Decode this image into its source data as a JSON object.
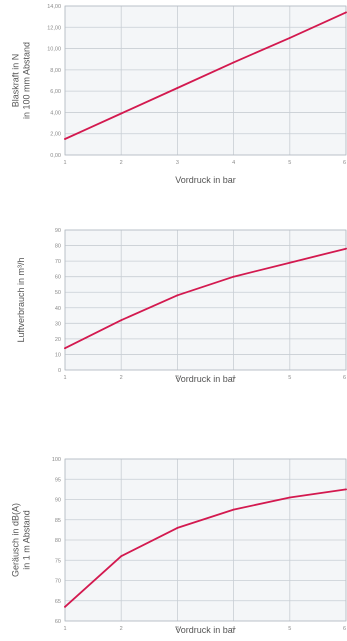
{
  "chart_data": [
    {
      "type": "line",
      "xlabel": "Vordruck in bar",
      "ylabel": [
        "Blaskraft in N",
        "in 100 mm Abstand"
      ],
      "xlim": [
        1,
        6
      ],
      "ylim": [
        0,
        14
      ],
      "x_ticks": [
        "1",
        "2",
        "3",
        "4",
        "5",
        "6"
      ],
      "y_ticks": [
        "0,00",
        "2,00",
        "4,00",
        "6,00",
        "8,00",
        "10,00",
        "12,00",
        "14,00"
      ],
      "grid": true,
      "series": [
        {
          "x": [
            1,
            2,
            3,
            4,
            5,
            6
          ],
          "y": [
            1.5,
            3.9,
            6.3,
            8.7,
            11.0,
            13.4
          ]
        }
      ],
      "line_color": "#d3194f"
    },
    {
      "type": "line",
      "xlabel": "Vordruck in bar",
      "ylabel": [
        "Luftverbrauch in m³/h"
      ],
      "xlim": [
        1,
        6
      ],
      "ylim": [
        0,
        90
      ],
      "x_ticks": [
        "1",
        "2",
        "3",
        "4",
        "5",
        "6"
      ],
      "y_ticks": [
        "0",
        "10",
        "20",
        "30",
        "40",
        "50",
        "60",
        "70",
        "80",
        "90"
      ],
      "grid": true,
      "series": [
        {
          "x": [
            1,
            2,
            3,
            4,
            5,
            6
          ],
          "y": [
            14,
            32,
            48,
            60,
            69,
            78
          ]
        }
      ],
      "line_color": "#d3194f"
    },
    {
      "type": "line",
      "xlabel": "Vordruck in bar",
      "ylabel": [
        "Geräusch in dB(A)",
        "in 1 m Abstand"
      ],
      "xlim": [
        1,
        6
      ],
      "ylim": [
        60,
        100
      ],
      "x_ticks": [
        "1",
        "2",
        "3",
        "4",
        "5",
        "6"
      ],
      "y_ticks": [
        "60",
        "65",
        "70",
        "75",
        "80",
        "85",
        "90",
        "95",
        "100"
      ],
      "grid": true,
      "series": [
        {
          "x": [
            1,
            2,
            3,
            4,
            5,
            6
          ],
          "y": [
            63.5,
            76,
            83,
            87.5,
            90.5,
            92.5
          ]
        }
      ],
      "line_color": "#d3194f"
    }
  ]
}
